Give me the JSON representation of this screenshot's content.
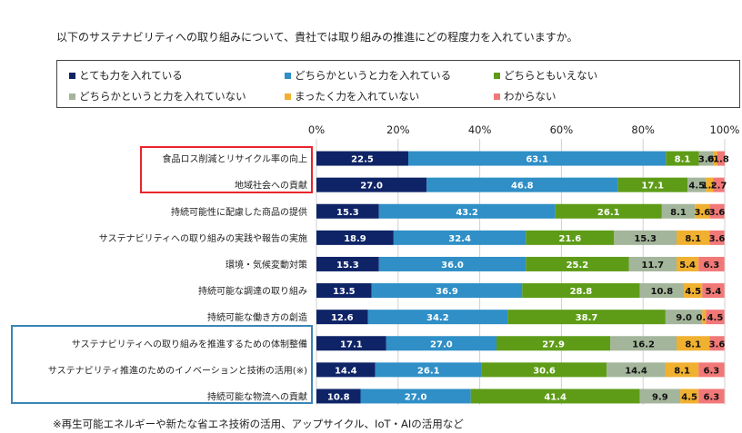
{
  "question": "以下のサステナビリティへの取り組みについて、貴社では取り組みの推進にどの程度力を入れていますか。",
  "note": "※再生可能エネルギーや新たな省エネ技術の活用、アップサイクル、IoT・AIの活用など",
  "chart_data": {
    "type": "bar",
    "orientation": "horizontal",
    "stacked": true,
    "percent_axis_ticks": [
      "0%",
      "20%",
      "40%",
      "60%",
      "80%",
      "100%"
    ],
    "xlim": [
      0,
      100
    ],
    "categories": [
      "食品ロス削減とリサイクル率の向上",
      "地域社会への貢献",
      "持続可能性に配慮した商品の提供",
      "サステナビリティへの取り組みの実践や報告の実施",
      "環境・気候変動対策",
      "持続可能な調達の取り組み",
      "持続可能な働き方の創造",
      "サステナビリティへの取り組みを推進するための体制整備",
      "サステナビリティ推進のためのイノベーションと技術の活用(※)",
      "持続可能な物流への貢献"
    ],
    "series": [
      {
        "name": "とても力を入れている",
        "color": "#0f2467",
        "values": [
          22.5,
          27.0,
          15.3,
          18.9,
          15.3,
          13.5,
          12.6,
          17.1,
          14.4,
          10.8
        ]
      },
      {
        "name": "どちらかというと力を入れている",
        "color": "#2f8fc6",
        "values": [
          63.1,
          46.8,
          43.2,
          32.4,
          36.0,
          36.9,
          34.2,
          27.0,
          26.1,
          27.0
        ]
      },
      {
        "name": "どちらともいえない",
        "color": "#5e9c18",
        "values": [
          8.1,
          17.1,
          26.1,
          21.6,
          25.2,
          28.8,
          38.7,
          27.9,
          30.6,
          41.4
        ]
      },
      {
        "name": "どちらかというと力を入れていない",
        "color": "#a3b59b",
        "values": [
          3.6,
          4.5,
          8.1,
          15.3,
          11.7,
          10.8,
          9.0,
          16.2,
          14.4,
          9.9
        ]
      },
      {
        "name": "まったく力を入れていない",
        "color": "#f0b030",
        "values": [
          0.9,
          1.8,
          3.6,
          8.1,
          5.4,
          4.5,
          0.9,
          8.1,
          8.1,
          4.5
        ]
      },
      {
        "name": "わからない",
        "color": "#f27878",
        "values": [
          1.8,
          2.7,
          3.6,
          3.6,
          6.3,
          5.4,
          4.5,
          3.6,
          6.3,
          6.3
        ]
      }
    ],
    "labels": [
      [
        "22.5",
        "63.1",
        "8.1",
        "3.6",
        "0.9",
        "1.8"
      ],
      [
        "27.0",
        "46.8",
        "17.1",
        "4.5",
        "1.8",
        "2.7"
      ],
      [
        "15.3",
        "43.2",
        "26.1",
        "8.1",
        "3.6",
        "3.6"
      ],
      [
        "18.9",
        "32.4",
        "21.6",
        "15.3",
        "8.1",
        "3.6"
      ],
      [
        "15.3",
        "36.0",
        "25.2",
        "11.7",
        "5.4",
        "6.3"
      ],
      [
        "13.5",
        "36.9",
        "28.8",
        "10.8",
        "4.5",
        "5.4"
      ],
      [
        "12.6",
        "34.2",
        "38.7",
        "9.0",
        "0.9",
        "4.5"
      ],
      [
        "17.1",
        "27.0",
        "27.9",
        "16.2",
        "8.1",
        "3.6"
      ],
      [
        "14.4",
        "26.1",
        "30.6",
        "14.4",
        "8.1",
        "6.3"
      ],
      [
        "10.8",
        "27.0",
        "41.4",
        "9.9",
        "4.5",
        "6.3"
      ]
    ],
    "label_colors": [
      "#ffffff",
      "#ffffff",
      "#ffffff",
      "#111111",
      "#111111",
      "#111111"
    ],
    "highlight_red": [
      "食品ロス削減とリサイクル率の向上",
      "地域社会への貢献"
    ],
    "highlight_blue": [
      "サステナビリティへの取り組みを推進するための体制整備",
      "サステナビリティ推進のためのイノベーションと技術の活用(※)",
      "持続可能な物流への貢献"
    ]
  }
}
